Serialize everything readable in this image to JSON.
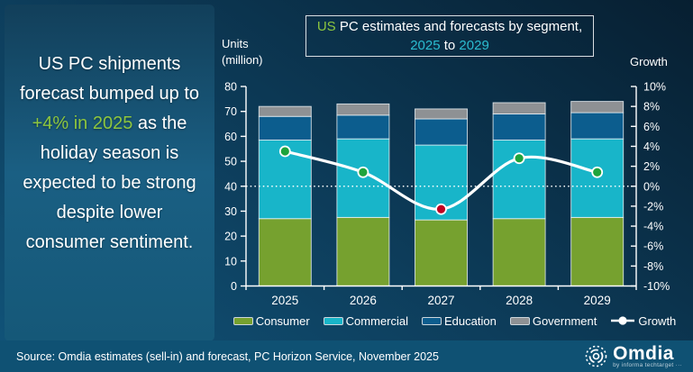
{
  "headline": {
    "pre": "US PC shipments forecast bumped up to ",
    "highlight": "+4% in 2025",
    "post": " as the holiday season is expected to be strong despite lower consumer sentiment."
  },
  "title_box": {
    "highlight": "US",
    "line1_rest": " PC estimates and forecasts by segment,",
    "year_start": "2025",
    "to": " to ",
    "year_end": "2029"
  },
  "axes": {
    "left_title_line1": "Units",
    "left_title_line2": "(million)",
    "right_title": "Growth"
  },
  "chart_data": {
    "type": "bar",
    "subtype": "stacked-bars-with-growth-line",
    "categories": [
      "2025",
      "2026",
      "2027",
      "2028",
      "2029"
    ],
    "series": [
      {
        "name": "Consumer",
        "color": "#76a12f",
        "values": [
          27,
          27.5,
          26.5,
          27,
          27.5
        ]
      },
      {
        "name": "Commercial",
        "color": "#18b5c9",
        "values": [
          31.5,
          31.5,
          30,
          31.5,
          31.5
        ]
      },
      {
        "name": "Education",
        "color": "#0c5d8e",
        "values": [
          9.5,
          9.5,
          10.5,
          10.5,
          10.5
        ]
      },
      {
        "name": "Government",
        "color": "#8e9194",
        "values": [
          4,
          4.5,
          4,
          4.5,
          4.5
        ]
      }
    ],
    "line_series": {
      "name": "Growth",
      "values_pct": [
        3.5,
        1.4,
        -2.3,
        2.8,
        1.4
      ],
      "color": "#ffffff",
      "marker_colors": [
        "#1ea43c",
        "#1ea43c",
        "#c00022",
        "#1ea43c",
        "#1ea43c"
      ]
    },
    "left_axis": {
      "title": "Units (million)",
      "min": 0,
      "max": 80,
      "step": 10
    },
    "right_axis": {
      "title": "Growth",
      "min": -10,
      "max": 10,
      "step": 2,
      "suffix": "%"
    },
    "zero_reference_line_pct": 0,
    "grid": "off",
    "legend_position": "bottom"
  },
  "footer": {
    "source": "Source: Omdia estimates (sell-in) and forecast, PC Horizon Service, November 2025",
    "logo_name": "Omdia",
    "logo_sub": "by informa techtarget ···"
  }
}
